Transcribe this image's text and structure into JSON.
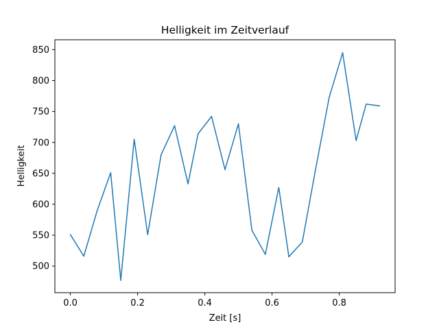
{
  "chart_data": {
    "type": "line",
    "title": "Helligkeit im Zeitverlauf",
    "xlabel": "Zeit [s]",
    "ylabel": "Helligkeit",
    "xlim": [
      -0.046,
      0.966
    ],
    "ylim": [
      457,
      866
    ],
    "xticks": [
      0.0,
      0.2,
      0.4,
      0.6,
      0.8
    ],
    "xtick_labels": [
      "0.0",
      "0.2",
      "0.4",
      "0.6",
      "0.8"
    ],
    "yticks": [
      500,
      550,
      600,
      650,
      700,
      750,
      800,
      850
    ],
    "ytick_labels": [
      "500",
      "550",
      "600",
      "650",
      "700",
      "750",
      "800",
      "850"
    ],
    "grid": false,
    "legend": "none",
    "color": "#1f77b4",
    "series": [
      {
        "x": [
          0.0,
          0.04,
          0.08,
          0.12,
          0.15,
          0.19,
          0.23,
          0.27,
          0.31,
          0.35,
          0.38,
          0.42,
          0.46,
          0.5,
          0.54,
          0.58,
          0.62,
          0.65,
          0.69,
          0.73,
          0.77,
          0.81,
          0.85,
          0.88,
          0.92
        ],
        "values": [
          551,
          516,
          590,
          651,
          477,
          705,
          551,
          680,
          727,
          633,
          714,
          742,
          656,
          730,
          558,
          519,
          627,
          515,
          539,
          658,
          773,
          845,
          703,
          762,
          759
        ]
      }
    ]
  }
}
